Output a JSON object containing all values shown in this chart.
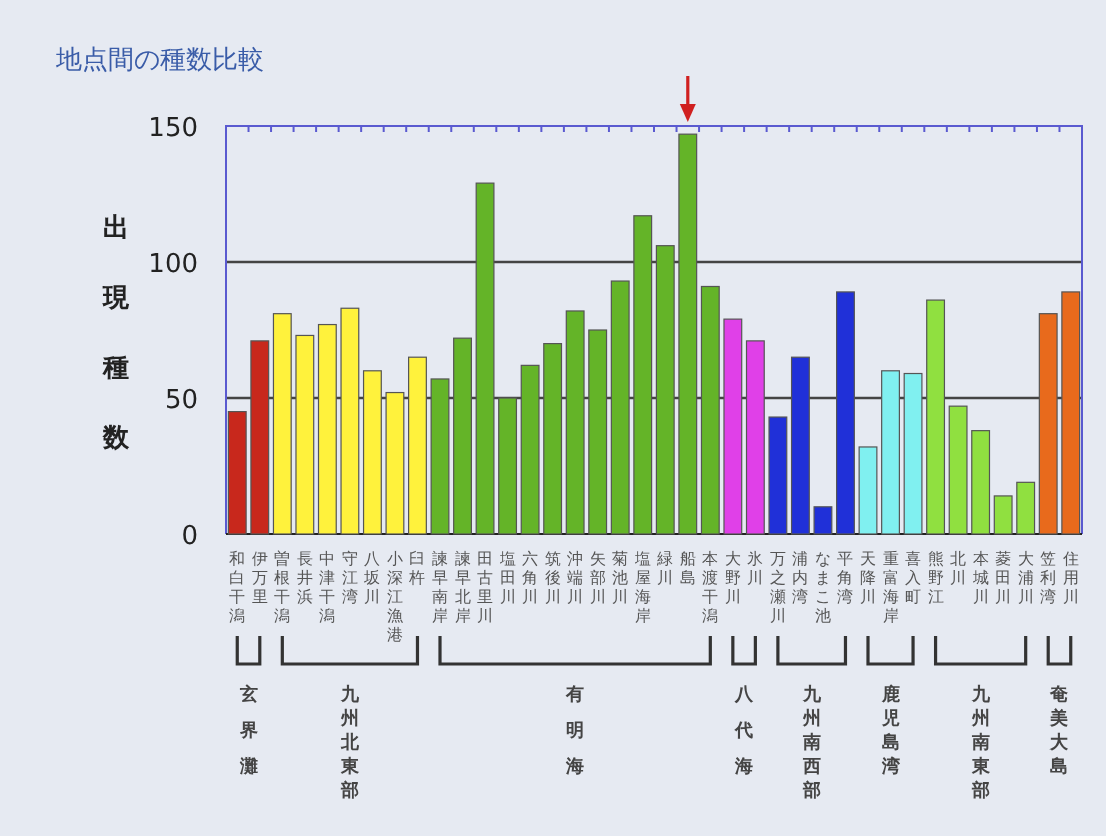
{
  "chart_data": {
    "type": "bar",
    "title": "地点間の種数比較",
    "ylabel": "出現種数",
    "categories": [
      "和白干潟",
      "伊万里",
      "曽根干潟",
      "長井浜",
      "中津干潟",
      "守江湾",
      "八坂川",
      "小深江漁港",
      "臼杵",
      "諫早南岸",
      "諫早北岸",
      "田古里川",
      "塩田川",
      "六角川",
      "筑後川",
      "沖端川",
      "矢部川",
      "菊池川",
      "塩屋海岸",
      "緑川",
      "船島",
      "本渡干潟",
      "大野川",
      "氷川",
      "万之瀬川",
      "浦内湾",
      "なまこ池",
      "平角湾",
      "天降川",
      "重富海岸",
      "喜入町",
      "熊野江",
      "北川",
      "本城川",
      "菱田川",
      "大浦川",
      "笠利湾",
      "住用川"
    ],
    "values": [
      45,
      71,
      81,
      73,
      77,
      83,
      60,
      52,
      65,
      57,
      72,
      129,
      50,
      62,
      70,
      82,
      75,
      93,
      117,
      106,
      147,
      91,
      79,
      71,
      43,
      65,
      10,
      89,
      32,
      60,
      59,
      86,
      47,
      38,
      14,
      19,
      81,
      89
    ],
    "colors": [
      "#c8281c",
      "#c8281c",
      "#fff23c",
      "#fff23c",
      "#fff23c",
      "#fff23c",
      "#fff23c",
      "#fff23c",
      "#fff23c",
      "#64b428",
      "#64b428",
      "#64b428",
      "#64b428",
      "#64b428",
      "#64b428",
      "#64b428",
      "#64b428",
      "#64b428",
      "#64b428",
      "#64b428",
      "#64b428",
      "#64b428",
      "#e040e8",
      "#e040e8",
      "#2030d8",
      "#2030d8",
      "#2030d8",
      "#2030d8",
      "#80f0f0",
      "#80f0f0",
      "#80f0f0",
      "#90e040",
      "#90e040",
      "#90e040",
      "#90e040",
      "#90e040",
      "#e86a1c",
      "#e86a1c"
    ],
    "annotations": [
      "玄界灘",
      "九州北東部",
      "有明海",
      "八代海",
      "九州南西部",
      "鹿児島湾",
      "九州南東部",
      "奄美大島"
    ],
    "ylim": [
      0,
      150
    ],
    "yticks": [
      0,
      50,
      100,
      150
    ],
    "grid": "y"
  }
}
